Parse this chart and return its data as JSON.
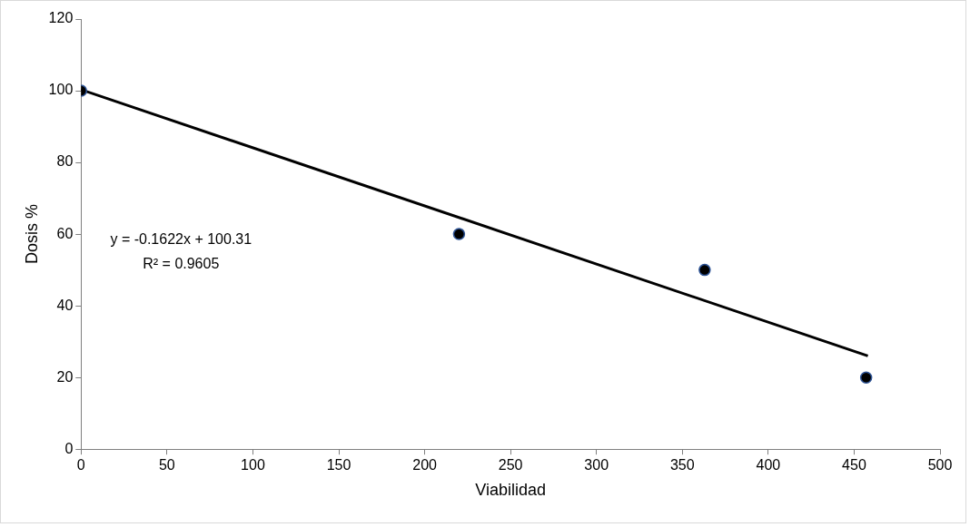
{
  "chart_data": {
    "type": "scatter",
    "xlabel": "Viabilidad",
    "ylabel": "Dosis %",
    "x": [
      0,
      220,
      363,
      457
    ],
    "series": [
      {
        "color": "#000000",
        "values": [
          100,
          60,
          50,
          20
        ],
        "marker": "circle"
      },
      {
        "type": "line",
        "color": "#000000",
        "x": [
          0,
          458
        ],
        "values": [
          100.31,
          26.02
        ],
        "marker": "none",
        "line_style": "solid"
      }
    ],
    "xlim": [
      0,
      500
    ],
    "xticks": [
      0,
      50,
      100,
      150,
      200,
      250,
      300,
      350,
      400,
      450,
      500
    ],
    "ylim": [
      0,
      120
    ],
    "yticks": [
      0,
      20,
      40,
      60,
      80,
      100,
      120
    ],
    "grid": false,
    "legend": false,
    "annotations": [
      "y = -0.1622x + 100.31",
      "R² = 0.9605"
    ]
  }
}
